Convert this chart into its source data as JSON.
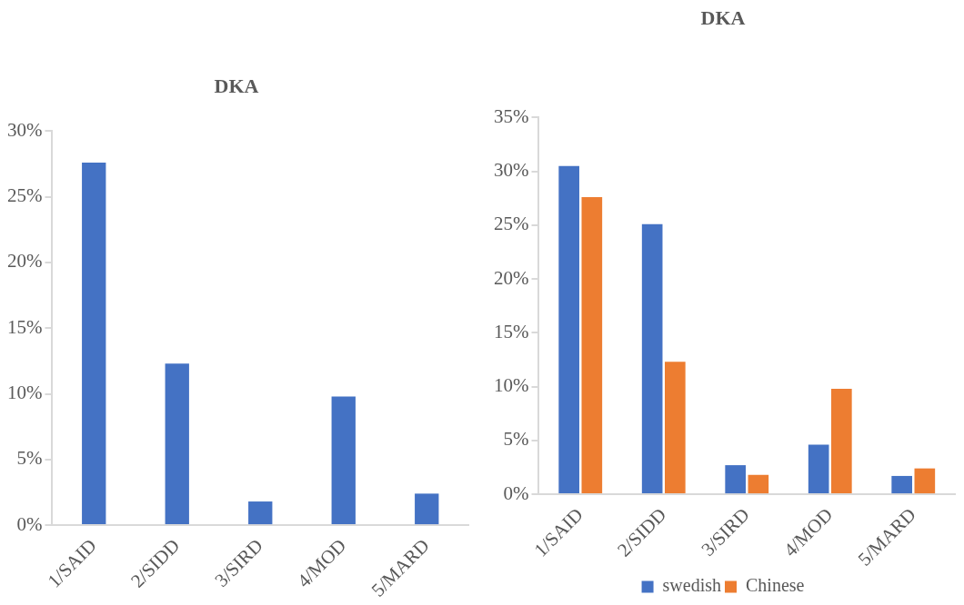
{
  "chart_data": [
    {
      "type": "bar",
      "title": "DKA",
      "categories": [
        "1/SAID",
        "2/SIDD",
        "3/SIRD",
        "4/MOD",
        "5/MARD"
      ],
      "series": [
        {
          "color": "#4472c4",
          "values": [
            27.6,
            12.3,
            1.8,
            9.8,
            2.4
          ]
        }
      ],
      "ylim": [
        0,
        30
      ],
      "yticks": [
        {
          "value": 0,
          "label": "0%"
        },
        {
          "value": 5,
          "label": "5%"
        },
        {
          "value": 10,
          "label": "10%"
        },
        {
          "value": 15,
          "label": "15%"
        },
        {
          "value": 20,
          "label": "20%"
        },
        {
          "value": 25,
          "label": "25%"
        },
        {
          "value": 30,
          "label": "30%"
        }
      ],
      "grid": false,
      "legend": false
    },
    {
      "type": "bar",
      "title": "DKA",
      "categories": [
        "1/SAID",
        "2/SIDD",
        "3/SIRD",
        "4/MOD",
        "5/MARD"
      ],
      "series": [
        {
          "name": "swedish",
          "color": "#4472c4",
          "values": [
            30.5,
            25.1,
            2.7,
            4.6,
            1.7
          ]
        },
        {
          "name": "Chinese",
          "color": "#ed7d31",
          "values": [
            27.6,
            12.3,
            1.8,
            9.8,
            2.4
          ]
        }
      ],
      "ylim": [
        0,
        35
      ],
      "yticks": [
        {
          "value": 0,
          "label": "0%"
        },
        {
          "value": 5,
          "label": "5%"
        },
        {
          "value": 10,
          "label": "10%"
        },
        {
          "value": 15,
          "label": "15%"
        },
        {
          "value": 20,
          "label": "20%"
        },
        {
          "value": 25,
          "label": "25%"
        },
        {
          "value": 30,
          "label": "30%"
        },
        {
          "value": 35,
          "label": "35%"
        }
      ],
      "grid": false,
      "legend": "bottom"
    }
  ]
}
